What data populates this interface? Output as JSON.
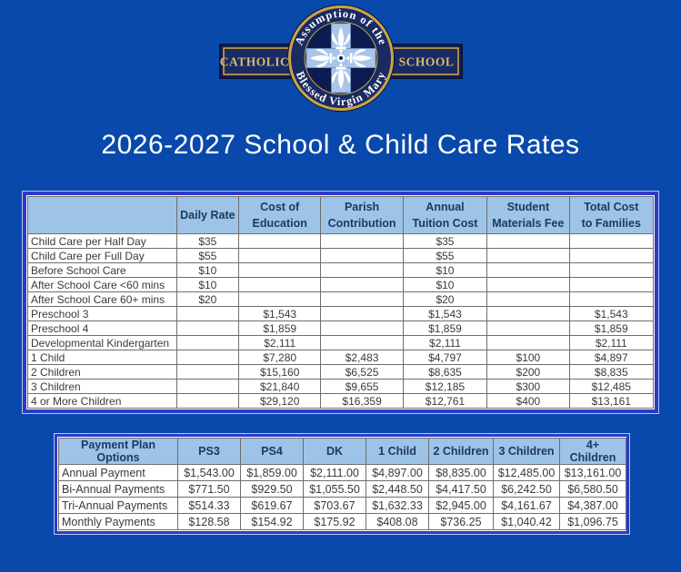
{
  "page": {
    "background_color": "#0849ab",
    "accent_border_color": "#2b3ac9"
  },
  "title": "2026-2027 School & Child Care Rates",
  "logo": {
    "top_arc_text": "Assumption of the",
    "bottom_arc_text": "Blessed Virgin Mary",
    "banner_left": "CATHOLIC",
    "banner_right": "SCHOOL",
    "colors": {
      "navy": "#1a2a62",
      "dark_navy": "#0d1638",
      "disc_navy": "#0c1c50",
      "gold": "#c9a44a",
      "gold_text": "#d6ba72",
      "cross_blue": "#a9c6e8",
      "ornament_white": "#ffffff"
    }
  },
  "rates_table": {
    "columns": [
      "",
      "Daily Rate",
      "Cost of\nEducation",
      "Parish\nContribution",
      "Annual\nTuition Cost",
      "Student\nMaterials Fee",
      "Total Cost\nto Families"
    ],
    "header_fill": "#9dc3e6",
    "header_text_color": "#1f3864",
    "rows": [
      [
        "Child Care per Half Day",
        "$35",
        "",
        "",
        "$35",
        "",
        ""
      ],
      [
        "Child Care per Full Day",
        "$55",
        "",
        "",
        "$55",
        "",
        ""
      ],
      [
        "Before School Care",
        "$10",
        "",
        "",
        "$10",
        "",
        ""
      ],
      [
        "After School Care <60 mins",
        "$10",
        "",
        "",
        "$10",
        "",
        ""
      ],
      [
        "After School Care 60+ mins",
        "$20",
        "",
        "",
        "$20",
        "",
        ""
      ],
      [
        "Preschool 3",
        "",
        "$1,543",
        "",
        "$1,543",
        "",
        "$1,543"
      ],
      [
        "Preschool 4",
        "",
        "$1,859",
        "",
        "$1,859",
        "",
        "$1,859"
      ],
      [
        "Developmental Kindergarten",
        "",
        "$2,111",
        "",
        "$2,111",
        "",
        "$2,111"
      ],
      [
        "1 Child",
        "",
        "$7,280",
        "$2,483",
        "$4,797",
        "$100",
        "$4,897"
      ],
      [
        "2 Children",
        "",
        "$15,160",
        "$6,525",
        "$8,635",
        "$200",
        "$8,835"
      ],
      [
        "3 Children",
        "",
        "$21,840",
        "$9,655",
        "$12,185",
        "$300",
        "$12,485"
      ],
      [
        "4 or More Children",
        "",
        "$29,120",
        "$16,359",
        "$12,761",
        "$400",
        "$13,161"
      ]
    ]
  },
  "payment_table": {
    "columns": [
      "Payment Plan Options",
      "PS3",
      "PS4",
      "DK",
      "1 Child",
      "2 Children",
      "3 Children",
      "4+ Children"
    ],
    "header_fill": "#9dc3e6",
    "header_text_color": "#1f3864",
    "rows": [
      [
        "Annual Payment",
        "$1,543.00",
        "$1,859.00",
        "$2,111.00",
        "$4,897.00",
        "$8,835.00",
        "$12,485.00",
        "$13,161.00"
      ],
      [
        "Bi-Annual Payments",
        "$771.50",
        "$929.50",
        "$1,055.50",
        "$2,448.50",
        "$4,417.50",
        "$6,242.50",
        "$6,580.50"
      ],
      [
        "Tri-Annual Payments",
        "$514.33",
        "$619.67",
        "$703.67",
        "$1,632.33",
        "$2,945.00",
        "$4,161.67",
        "$4,387.00"
      ],
      [
        "Monthly Payments",
        "$128.58",
        "$154.92",
        "$175.92",
        "$408.08",
        "$736.25",
        "$1,040.42",
        "$1,096.75"
      ]
    ]
  }
}
